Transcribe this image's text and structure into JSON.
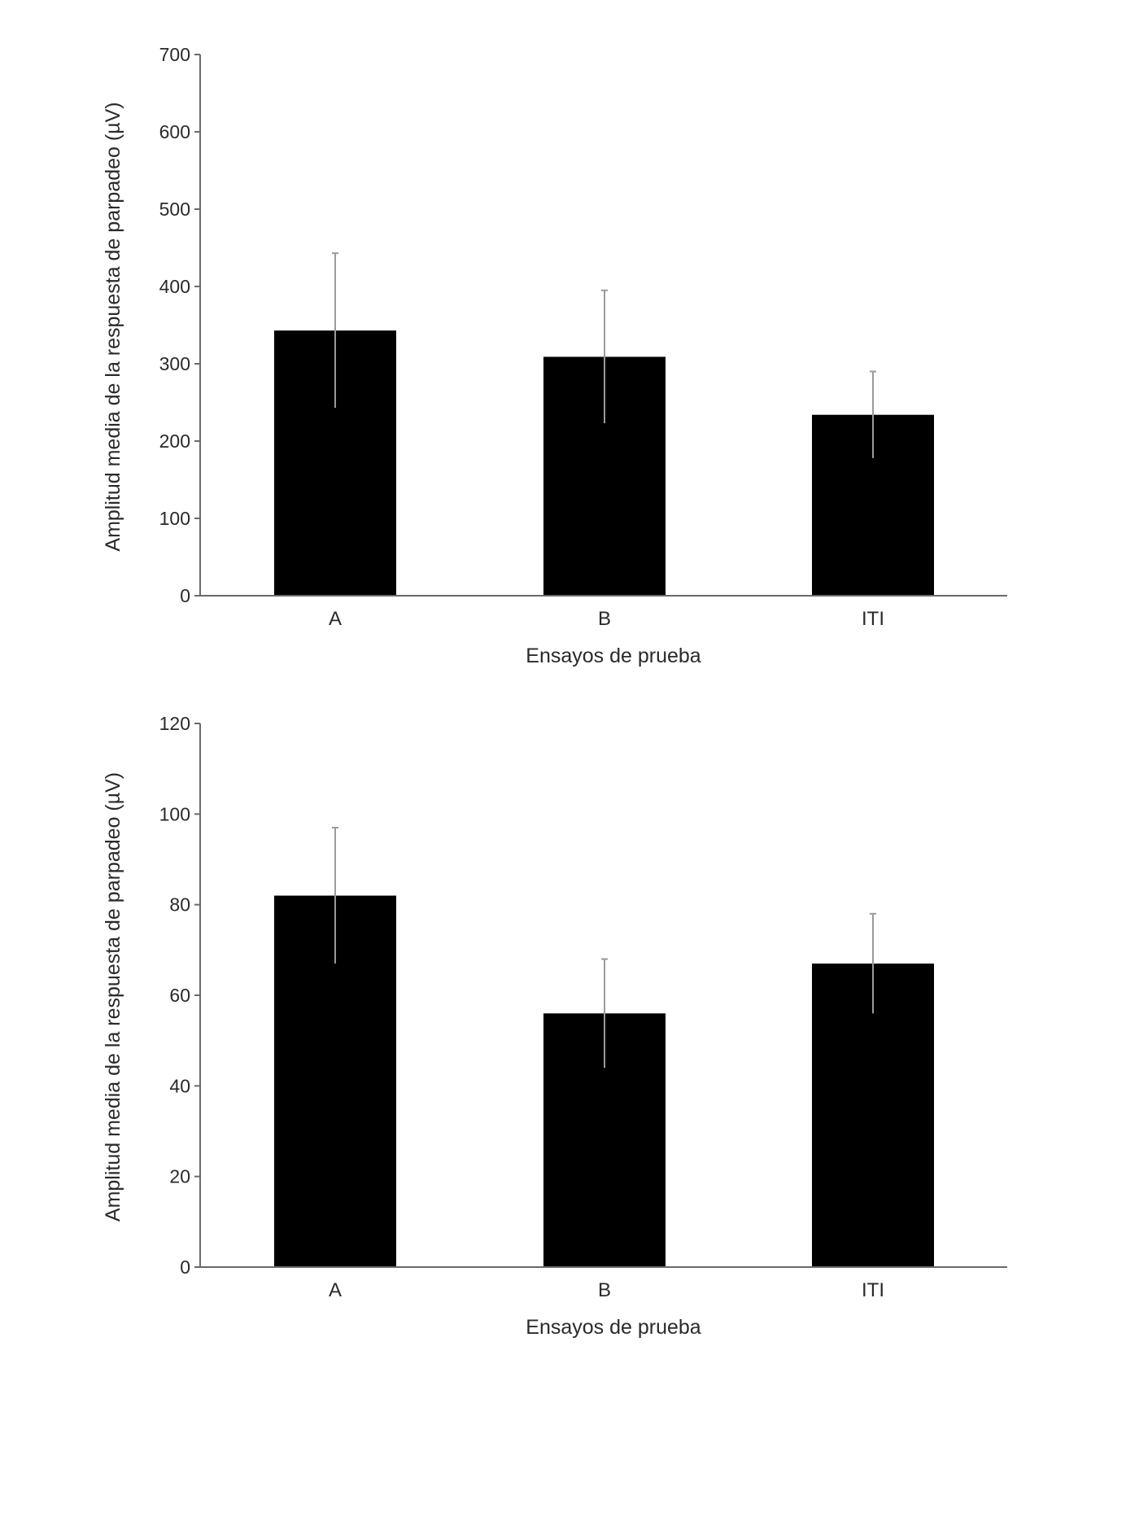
{
  "chart_data": [
    {
      "type": "bar",
      "categories": [
        "A",
        "B",
        "ITI"
      ],
      "values": [
        343,
        309,
        234
      ],
      "error": [
        100,
        86,
        56
      ],
      "xlabel": "Ensayos de prueba",
      "ylabel": "Amplitud media de la respuesta de parpadeo (µV)",
      "ylim": [
        0,
        700
      ],
      "yticks": [
        "0",
        "100",
        "200",
        "300",
        "400",
        "500",
        "600",
        "700"
      ],
      "bar_color": "#000000",
      "grid": false
    },
    {
      "type": "bar",
      "categories": [
        "A",
        "B",
        "ITI"
      ],
      "values": [
        82,
        56,
        67
      ],
      "error": [
        15,
        12,
        11
      ],
      "xlabel": "Ensayos de prueba",
      "ylabel": "Amplitud media de la respuesta de parpadeo (µV)",
      "ylim": [
        0,
        120
      ],
      "yticks": [
        "0",
        "20",
        "40",
        "60",
        "80",
        "100",
        "120"
      ],
      "bar_color": "#000000",
      "grid": false
    }
  ]
}
